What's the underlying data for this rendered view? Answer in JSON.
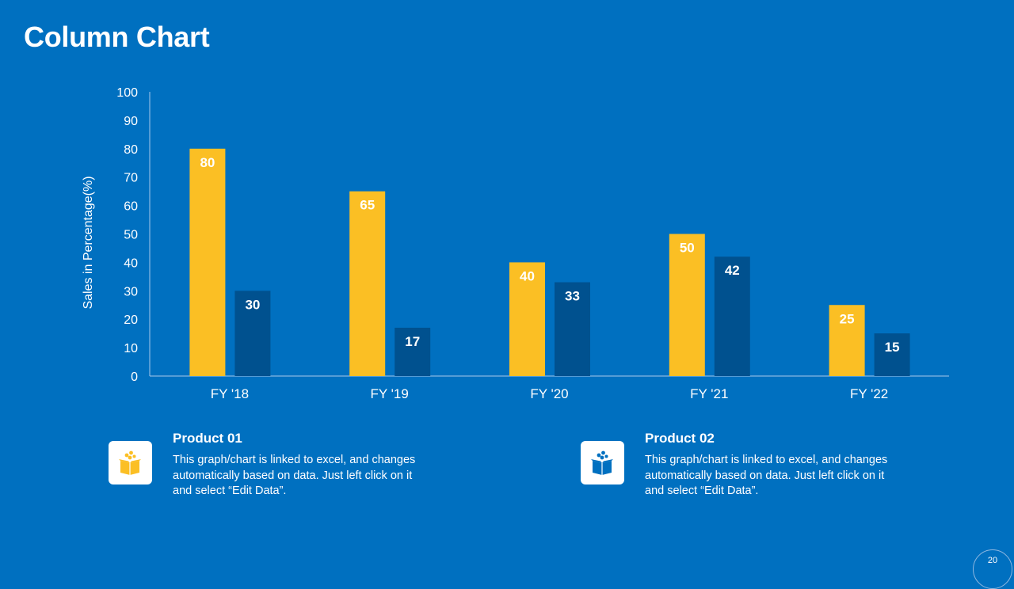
{
  "slide": {
    "title": "Column Chart",
    "page_number": "20"
  },
  "colors": {
    "background": "#0070c0",
    "product_01": "#fbbf24",
    "product_02": "#00518f"
  },
  "chart_data": {
    "type": "bar",
    "title": "",
    "xlabel": "",
    "ylabel": "Sales in Percentage(%)",
    "categories": [
      "FY '18",
      "FY '19",
      "FY '20",
      "FY '21",
      "FY '22"
    ],
    "series": [
      {
        "name": "Product 01",
        "values": [
          80,
          65,
          40,
          50,
          25
        ]
      },
      {
        "name": "Product 02",
        "values": [
          30,
          17,
          33,
          42,
          15
        ]
      }
    ],
    "ylim": [
      0,
      100
    ],
    "yticks": [
      0,
      10,
      20,
      30,
      40,
      50,
      60,
      70,
      80,
      90,
      100
    ],
    "grid": false,
    "data_labels": true
  },
  "legend": [
    {
      "icon": "box-icon",
      "title": "Product 01",
      "text": "This graph/chart is linked to excel, and changes automatically based on data. Just left click on it and select “Edit Data”."
    },
    {
      "icon": "box-icon",
      "title": "Product 02",
      "text": "This graph/chart is linked to excel, and changes automatically based on data. Just left click on it and select “Edit Data”."
    }
  ]
}
